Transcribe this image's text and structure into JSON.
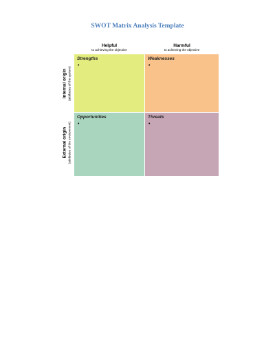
{
  "document": {
    "title": "SWOT Matrix Analysis Template"
  },
  "columns": {
    "helpful": {
      "label": "Helpful",
      "sublabel": "to achieving the objective"
    },
    "harmful": {
      "label": "Harmful",
      "sublabel": "to achieving the objective"
    }
  },
  "rows": {
    "internal": {
      "label": "Internal origin",
      "sublabel": "(attributes of the system)"
    },
    "external": {
      "label": "External origin",
      "sublabel": "(attributes of the environment)"
    }
  },
  "quadrants": {
    "strengths": {
      "label": "Strengths",
      "color": "#e3ec7e",
      "bullet": "•"
    },
    "weaknesses": {
      "label": "Weaknesses",
      "color": "#f9c28a",
      "bullet": "•"
    },
    "opportunities": {
      "label": "Opportunities",
      "color": "#a9d5be",
      "bullet": "•"
    },
    "threats": {
      "label": "Threats",
      "color": "#c6a6b5",
      "bullet": "•"
    }
  }
}
